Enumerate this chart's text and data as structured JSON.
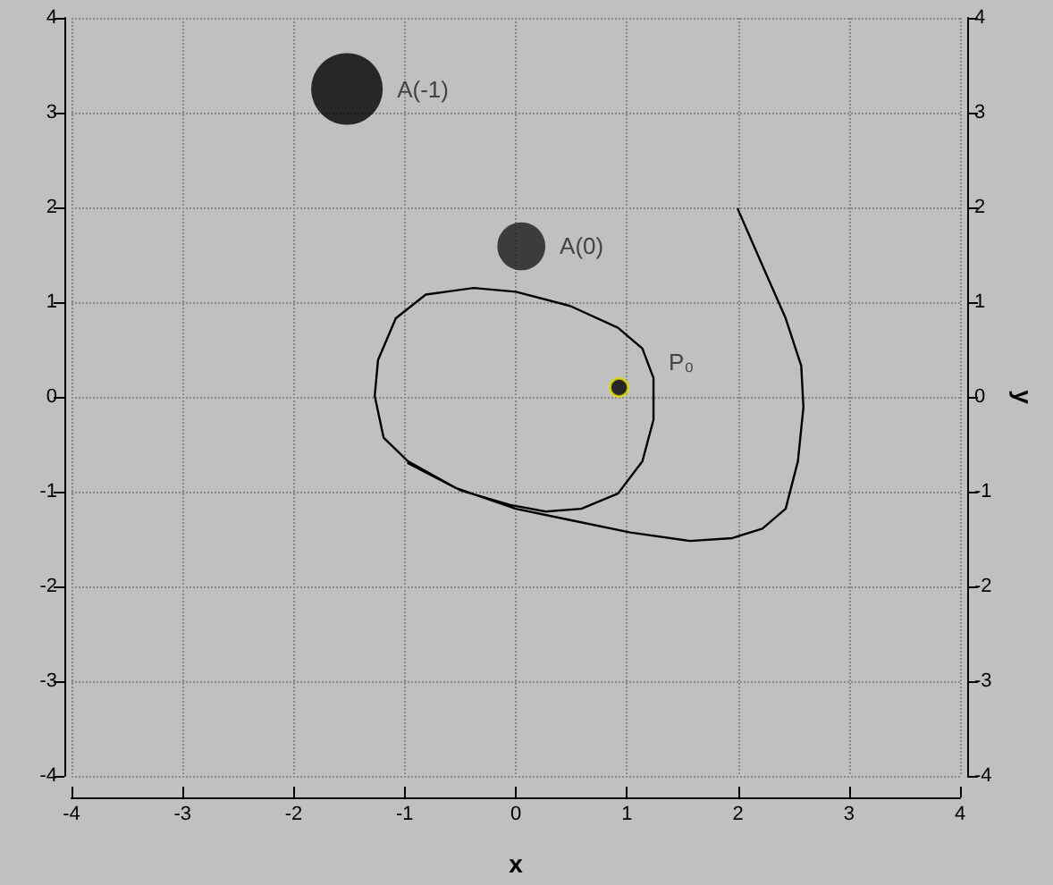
{
  "chart_data": {
    "type": "line",
    "xlabel": "x",
    "y2label": "y",
    "xlim": [
      -4,
      4
    ],
    "xticks": [
      -4,
      -3,
      -2,
      -1,
      0,
      1,
      2,
      3,
      4
    ],
    "ylim": [
      -4,
      4
    ],
    "yticks": [
      -4,
      -3,
      -2,
      -1,
      0,
      1,
      2,
      3,
      4
    ],
    "y2lim": [
      -4,
      4
    ],
    "y2ticks": [
      -4,
      -3,
      -2,
      -1,
      0,
      1,
      2,
      3,
      4
    ],
    "grid": true,
    "legend": false,
    "line_style": "solid",
    "series": [
      {
        "marker": "none",
        "color": "#000000",
        "x": [
          2,
          2.22,
          2.43,
          2.57,
          2.59,
          2.54,
          2.43,
          2.22,
          1.95,
          1.57,
          1.03,
          0.49,
          0,
          -0.54,
          -0.97,
          -1.19,
          -1.27,
          -1.24,
          -1.08,
          -0.81,
          -0.38,
          0,
          0.49,
          0.92,
          1.14,
          1.24,
          1.24,
          1.14,
          0.92,
          0.59,
          0.27,
          -0.05,
          -0.49,
          -0.97
        ],
        "values": [
          1.98,
          1.39,
          0.83,
          0.33,
          -0.11,
          -0.68,
          -1.18,
          -1.39,
          -1.49,
          -1.52,
          -1.43,
          -1.3,
          -1.18,
          -0.96,
          -0.68,
          -0.43,
          0.01,
          0.39,
          0.83,
          1.08,
          1.15,
          1.11,
          0.96,
          0.73,
          0.51,
          0.2,
          -0.24,
          -0.68,
          -1.02,
          -1.18,
          -1.21,
          -1.14,
          -0.99,
          -0.7
        ]
      },
      {
        "type": "scatter",
        "name": "P₀",
        "color": "#000000",
        "marker": "circle",
        "x": [
          0.93
        ],
        "values": [
          0.1
        ]
      },
      {
        "type": "bubble",
        "name": "A(-1)",
        "color": "#000000",
        "x": [
          -1.52
        ],
        "values": [
          3.25
        ],
        "sizes": [
          1
        ]
      },
      {
        "type": "bubble",
        "name": "A(0)",
        "color": "#1a1a1a",
        "x": [
          0.05
        ],
        "values": [
          1.59
        ],
        "sizes": [
          0.45
        ]
      }
    ]
  }
}
